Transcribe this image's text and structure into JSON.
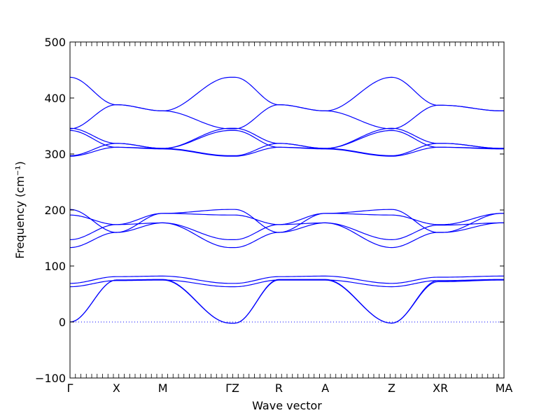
{
  "chart_data": {
    "type": "line",
    "title": "",
    "xlabel": "Wave vector",
    "ylabel": "Frequency (cm⁻¹)",
    "ylim": [
      -100,
      500
    ],
    "yticks": [
      -100,
      0,
      100,
      200,
      300,
      400,
      500
    ],
    "xlim": [
      0,
      9.35
    ],
    "high_symmetry_points": [
      {
        "label": "Γ",
        "x": 0.0
      },
      {
        "label": "X",
        "x": 1.0
      },
      {
        "label": "M",
        "x": 2.0
      },
      {
        "label": "ΓZ",
        "x": 3.5
      },
      {
        "label": "R",
        "x": 4.5
      },
      {
        "label": "A",
        "x": 5.5
      },
      {
        "label": "Z",
        "x": 6.93
      },
      {
        "label": "XR",
        "x": 7.98
      },
      {
        "label": "MA",
        "x": 9.35
      }
    ],
    "zero_line": {
      "y": 0,
      "style": "dotted"
    },
    "grid": false,
    "line_color": "#0000ff",
    "series_x": [
      0,
      1,
      2,
      3.45,
      3.55,
      4.5,
      5.5,
      6.93,
      7.93,
      8.03,
      9.3,
      9.35
    ],
    "series": [
      {
        "values": [
          0,
          75,
          75,
          -2,
          -2,
          75,
          75,
          -2,
          72,
          72,
          75,
          75
        ]
      },
      {
        "values": [
          0,
          75,
          76,
          -2,
          -2,
          76,
          76,
          -2,
          74,
          74,
          76,
          76
        ]
      },
      {
        "values": [
          63,
          74,
          75,
          63,
          63,
          75,
          75,
          63,
          74,
          74,
          75,
          75
        ]
      },
      {
        "values": [
          69,
          81,
          82,
          69,
          69,
          81,
          82,
          69,
          80,
          80,
          82,
          82
        ]
      },
      {
        "values": [
          133,
          160,
          177,
          133,
          133,
          160,
          177,
          133,
          160,
          160,
          177,
          177
        ]
      },
      {
        "values": [
          147,
          174,
          177,
          147,
          147,
          174,
          177,
          147,
          173,
          173,
          177,
          177
        ]
      },
      {
        "values": [
          191,
          174,
          194,
          191,
          191,
          174,
          194,
          191,
          174,
          174,
          194,
          194
        ]
      },
      {
        "values": [
          201,
          160,
          194,
          201,
          201,
          160,
          194,
          201,
          160,
          160,
          194,
          194
        ]
      },
      {
        "values": [
          296,
          312,
          309,
          296,
          296,
          312,
          309,
          296,
          312,
          312,
          309,
          309
        ]
      },
      {
        "values": [
          297,
          319,
          310,
          297,
          297,
          319,
          310,
          297,
          319,
          319,
          310,
          310
        ]
      },
      {
        "values": [
          342,
          312,
          310,
          342,
          342,
          312,
          310,
          342,
          312,
          312,
          310,
          310
        ]
      },
      {
        "values": [
          346,
          319,
          310,
          346,
          346,
          319,
          310,
          346,
          319,
          319,
          310,
          310
        ]
      },
      {
        "values": [
          345,
          388,
          377,
          345,
          345,
          388,
          377,
          345,
          387,
          387,
          377,
          377
        ]
      },
      {
        "values": [
          437,
          388,
          377,
          437,
          437,
          388,
          377,
          437,
          387,
          387,
          377,
          377
        ]
      }
    ]
  }
}
